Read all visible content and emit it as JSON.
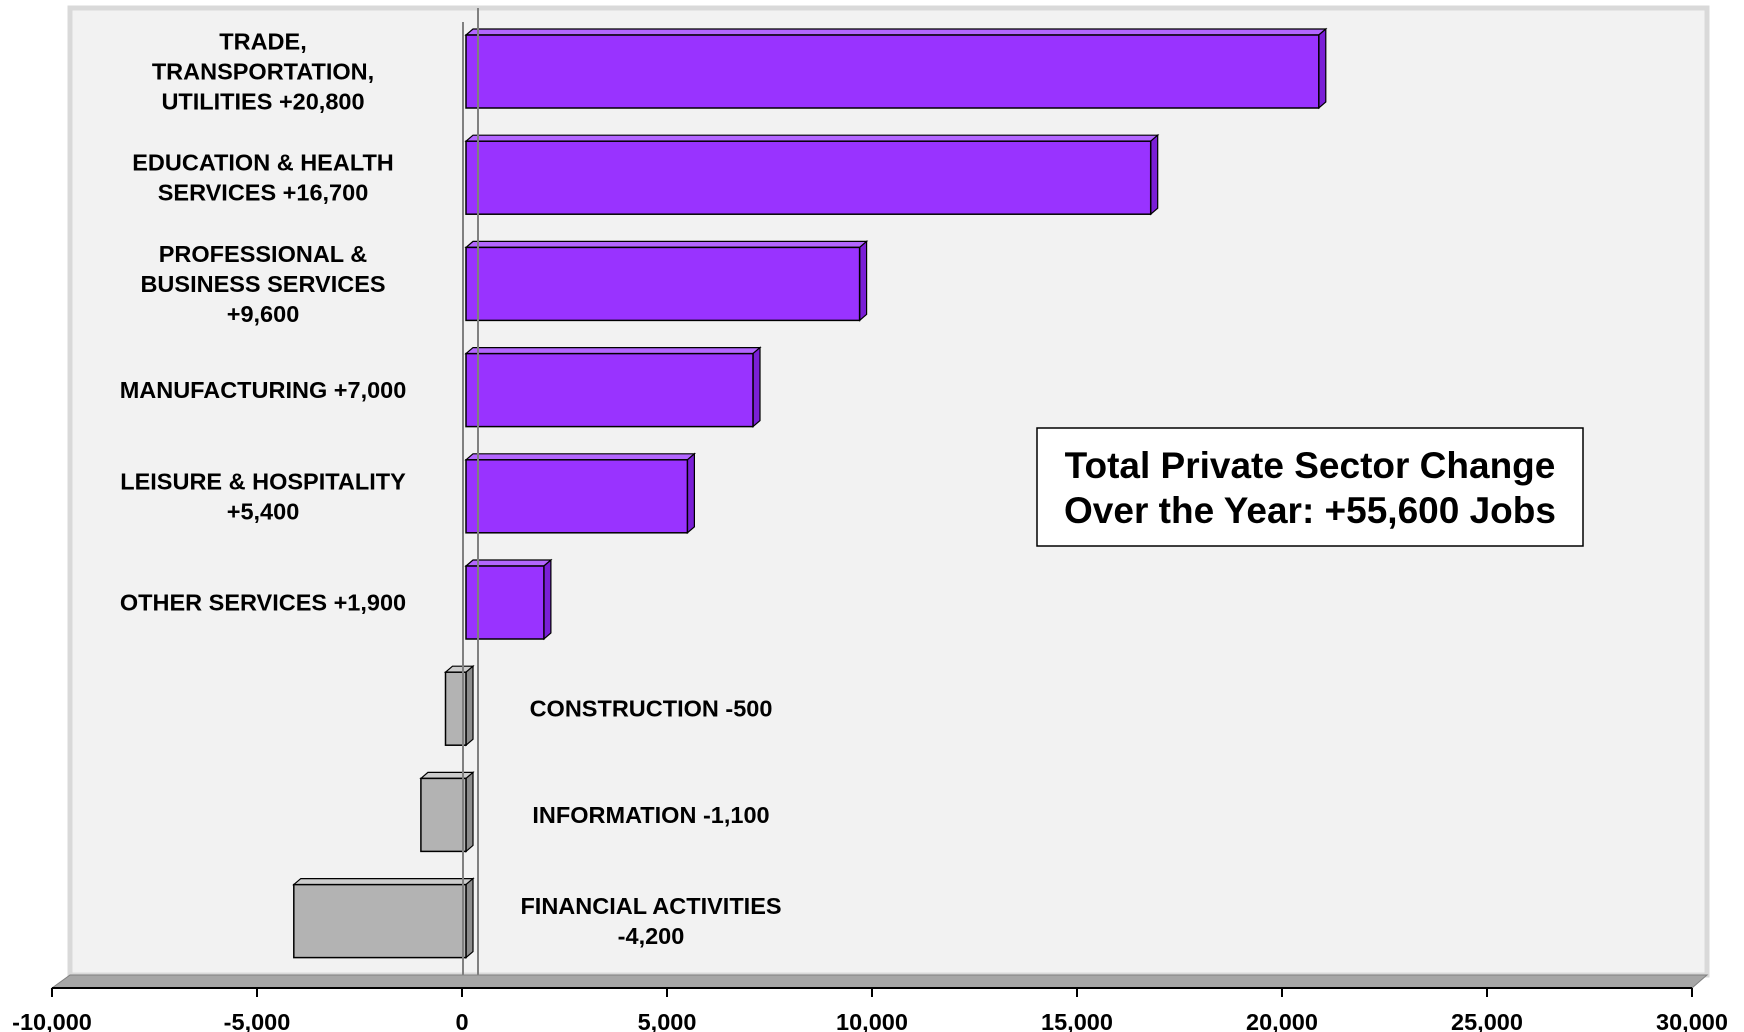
{
  "chart_data": {
    "type": "bar",
    "orientation": "horizontal",
    "style": "3d",
    "xlim": [
      -10000,
      30000
    ],
    "x_ticks": [
      "-10,000",
      "-5,000",
      "0",
      "5,000",
      "10,000",
      "15,000",
      "20,000",
      "25,000",
      "30,000"
    ],
    "x_tick_values": [
      -10000,
      -5000,
      0,
      5000,
      10000,
      15000,
      20000,
      25000,
      30000
    ],
    "grid": false,
    "legend": "none",
    "categories": [
      "TRADE, TRANSPORTATION, UTILITIES +20,800",
      "EDUCATION & HEALTH SERVICES +16,700",
      "PROFESSIONAL & BUSINESS SERVICES +9,600",
      "MANUFACTURING +7,000",
      "LEISURE & HOSPITALITY +5,400",
      "OTHER SERVICES +1,900",
      "CONSTRUCTION -500",
      "INFORMATION -1,100",
      "FINANCIAL ACTIVITIES -4,200"
    ],
    "values": [
      20800,
      16700,
      9600,
      7000,
      5400,
      1900,
      -500,
      -1100,
      -4200
    ],
    "label_lines": [
      [
        "TRADE,",
        "TRANSPORTATION,",
        "UTILITIES +20,800"
      ],
      [
        "EDUCATION & HEALTH",
        "SERVICES  +16,700"
      ],
      [
        "PROFESSIONAL &",
        "BUSINESS SERVICES",
        "+9,600"
      ],
      [
        "MANUFACTURING +7,000"
      ],
      [
        "LEISURE & HOSPITALITY",
        "+5,400"
      ],
      [
        "OTHER SERVICES +1,900"
      ],
      [
        "CONSTRUCTION -500"
      ],
      [
        "INFORMATION -1,100"
      ],
      [
        "FINANCIAL ACTIVITIES",
        "-4,200"
      ]
    ],
    "annotation": [
      "Total Private Sector Change",
      "Over the Year: +55,600 Jobs"
    ],
    "colors": {
      "positive": "#9933ff",
      "positive_top": "#b366ff",
      "positive_side": "#7a1fd6",
      "negative": "#b3b3b3",
      "negative_top": "#cccccc",
      "negative_side": "#8c8c8c",
      "plot_background": "#f2f2f2",
      "wall_border": "#d9d9d9",
      "floor": "#a6a6a6"
    }
  }
}
